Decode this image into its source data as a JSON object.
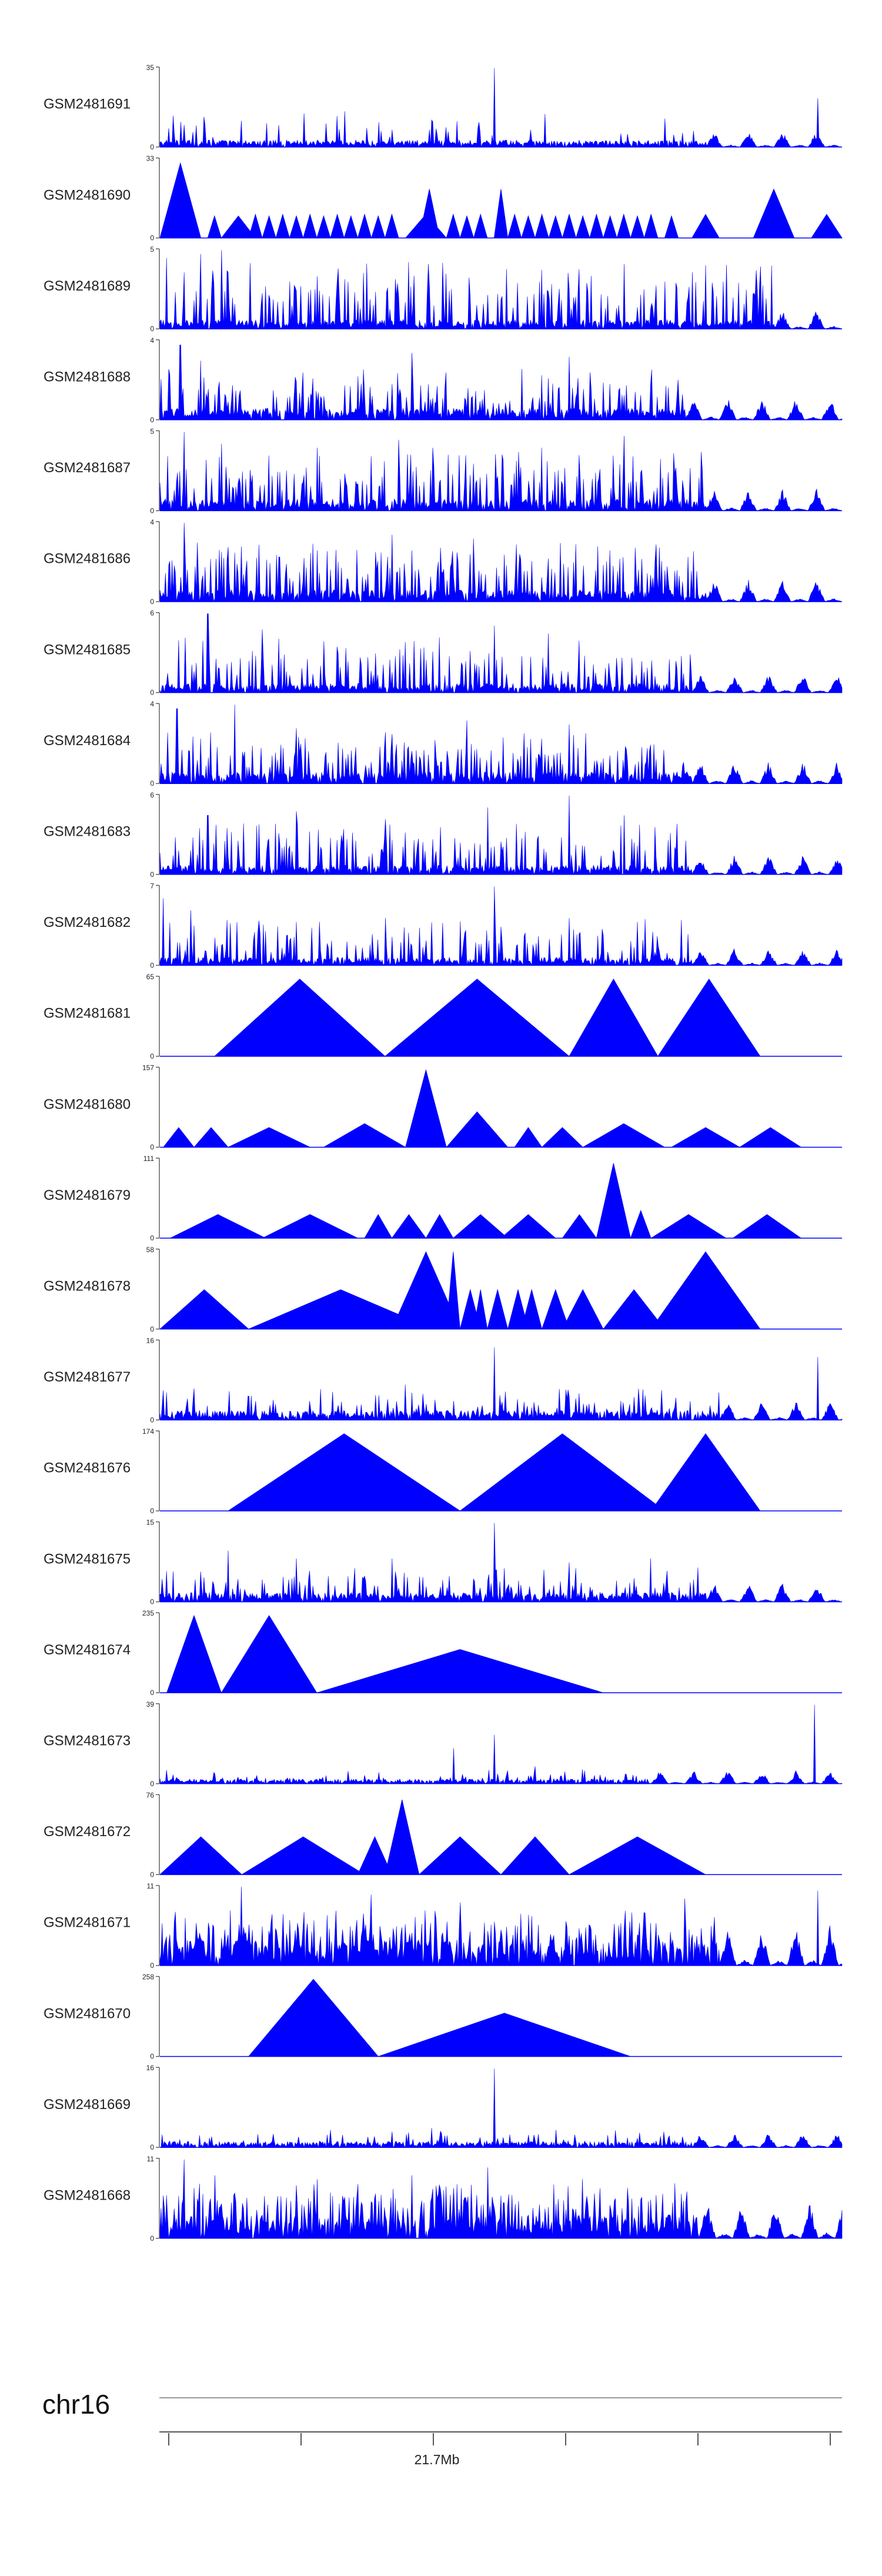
{
  "chart_data": {
    "type": "area",
    "chromosome": "chr16",
    "position_label": "21.7Mb",
    "color": "#0000ff",
    "tracks": [
      {
        "name": "GSM2481691",
        "ymax": "35",
        "ymax_value": 35,
        "style": "dense",
        "baseline": 0.06,
        "peak_rate": 0.1,
        "peaks": [
          [
            0.02,
            0.08
          ],
          [
            0.035,
            0.28
          ],
          [
            0.34,
            0.22
          ],
          [
            0.49,
            1.0
          ],
          [
            0.965,
            0.62
          ]
        ],
        "sparse_from": 0.8
      },
      {
        "name": "GSM2481690",
        "ymax": "33",
        "ymax_value": 33,
        "style": "triangles",
        "triangles": [
          [
            0.0,
            0.06,
            0.95
          ],
          [
            0.04,
            0.02,
            0.22
          ],
          [
            0.07,
            0.02,
            0.28
          ],
          [
            0.09,
            0.05,
            0.28
          ],
          [
            0.13,
            0.02,
            0.3
          ],
          [
            0.15,
            0.02,
            0.28
          ],
          [
            0.17,
            0.02,
            0.3
          ],
          [
            0.19,
            0.02,
            0.28
          ],
          [
            0.21,
            0.02,
            0.3
          ],
          [
            0.23,
            0.02,
            0.28
          ],
          [
            0.25,
            0.02,
            0.3
          ],
          [
            0.27,
            0.02,
            0.28
          ],
          [
            0.29,
            0.02,
            0.3
          ],
          [
            0.31,
            0.02,
            0.28
          ],
          [
            0.33,
            0.02,
            0.3
          ],
          [
            0.36,
            0.06,
            0.3
          ],
          [
            0.38,
            0.03,
            0.62
          ],
          [
            0.39,
            0.02,
            0.28
          ],
          [
            0.42,
            0.02,
            0.3
          ],
          [
            0.44,
            0.02,
            0.28
          ],
          [
            0.46,
            0.02,
            0.3
          ],
          [
            0.49,
            0.02,
            0.62
          ],
          [
            0.51,
            0.02,
            0.3
          ],
          [
            0.53,
            0.02,
            0.28
          ],
          [
            0.55,
            0.02,
            0.3
          ],
          [
            0.57,
            0.02,
            0.28
          ],
          [
            0.59,
            0.02,
            0.3
          ],
          [
            0.61,
            0.02,
            0.28
          ],
          [
            0.63,
            0.02,
            0.3
          ],
          [
            0.65,
            0.02,
            0.28
          ],
          [
            0.67,
            0.02,
            0.3
          ],
          [
            0.69,
            0.02,
            0.28
          ],
          [
            0.71,
            0.02,
            0.3
          ],
          [
            0.74,
            0.02,
            0.28
          ],
          [
            0.78,
            0.04,
            0.3
          ],
          [
            0.87,
            0.06,
            0.62
          ],
          [
            0.955,
            0.05,
            0.3
          ]
        ]
      },
      {
        "name": "GSM2481689",
        "ymax": "5",
        "ymax_value": 5,
        "style": "spikes",
        "baseline": 0.08,
        "peak_rate": 0.32,
        "peak_min": 0.25,
        "peak_max": 0.85,
        "peaks": [
          [
            0.01,
            0.9
          ],
          [
            0.06,
            0.95
          ],
          [
            0.09,
            1.0
          ],
          [
            0.19,
            0.6
          ],
          [
            0.42,
            0.7
          ],
          [
            0.56,
            0.75
          ],
          [
            0.78,
            0.72
          ]
        ],
        "sparse_from": 0.9
      },
      {
        "name": "GSM2481688",
        "ymax": "4",
        "ymax_value": 4,
        "style": "spikes",
        "baseline": 0.1,
        "peak_rate": 0.3,
        "peak_min": 0.2,
        "peak_max": 0.65,
        "peaks": [
          [
            0.03,
            0.95
          ],
          [
            0.06,
            0.75
          ],
          [
            0.21,
            0.6
          ],
          [
            0.29,
            0.55
          ],
          [
            0.37,
            0.85
          ],
          [
            0.42,
            0.6
          ],
          [
            0.6,
            0.8
          ]
        ],
        "sparse_from": 0.77
      },
      {
        "name": "GSM2481687",
        "ymax": "5",
        "ymax_value": 5,
        "style": "spikes",
        "baseline": 0.1,
        "peak_rate": 0.32,
        "peak_min": 0.25,
        "peak_max": 0.75,
        "peaks": [
          [
            0.035,
            1.0
          ],
          [
            0.09,
            0.85
          ],
          [
            0.16,
            0.7
          ],
          [
            0.23,
            0.8
          ],
          [
            0.35,
            0.9
          ],
          [
            0.4,
            0.8
          ],
          [
            0.56,
            0.8
          ],
          [
            0.68,
            0.95
          ]
        ],
        "sparse_from": 0.8
      },
      {
        "name": "GSM2481686",
        "ymax": "4",
        "ymax_value": 4,
        "style": "spikes",
        "baseline": 0.1,
        "peak_rate": 0.3,
        "peak_min": 0.25,
        "peak_max": 0.75,
        "peaks": [
          [
            0.035,
            1.0
          ],
          [
            0.12,
            0.7
          ],
          [
            0.23,
            0.65
          ],
          [
            0.34,
            0.85
          ],
          [
            0.46,
            0.8
          ],
          [
            0.66,
            0.65
          ]
        ],
        "sparse_from": 0.8
      },
      {
        "name": "GSM2481685",
        "ymax": "6",
        "ymax_value": 6,
        "style": "spikes",
        "baseline": 0.08,
        "peak_rate": 0.28,
        "peak_min": 0.2,
        "peak_max": 0.7,
        "peaks": [
          [
            0.07,
            1.0
          ],
          [
            0.15,
            0.8
          ],
          [
            0.24,
            0.65
          ],
          [
            0.41,
            0.7
          ],
          [
            0.49,
            0.85
          ],
          [
            0.57,
            0.75
          ]
        ],
        "sparse_from": 0.78
      },
      {
        "name": "GSM2481684",
        "ymax": "4",
        "ymax_value": 4,
        "style": "spikes",
        "baseline": 0.1,
        "peak_rate": 0.3,
        "peak_min": 0.2,
        "peak_max": 0.65,
        "peaks": [
          [
            0.025,
            0.95
          ],
          [
            0.11,
            1.0
          ],
          [
            0.2,
            0.7
          ],
          [
            0.33,
            0.65
          ],
          [
            0.45,
            0.8
          ],
          [
            0.6,
            0.75
          ]
        ],
        "sparse_from": 0.78
      },
      {
        "name": "GSM2481683",
        "ymax": "6",
        "ymax_value": 6,
        "style": "spikes",
        "baseline": 0.08,
        "peak_rate": 0.28,
        "peak_min": 0.2,
        "peak_max": 0.65,
        "peaks": [
          [
            0.07,
            0.75
          ],
          [
            0.2,
            0.8
          ],
          [
            0.33,
            0.7
          ],
          [
            0.48,
            0.85
          ],
          [
            0.6,
            1.0
          ],
          [
            0.68,
            0.75
          ]
        ],
        "sparse_from": 0.78
      },
      {
        "name": "GSM2481682",
        "ymax": "7",
        "ymax_value": 7,
        "style": "spikes",
        "baseline": 0.07,
        "peak_rate": 0.26,
        "peak_min": 0.15,
        "peak_max": 0.6,
        "peaks": [
          [
            0.005,
            0.85
          ],
          [
            0.045,
            0.7
          ],
          [
            0.2,
            0.55
          ],
          [
            0.33,
            0.6
          ],
          [
            0.49,
            1.0
          ],
          [
            0.6,
            0.6
          ],
          [
            0.7,
            0.55
          ]
        ],
        "sparse_from": 0.78
      },
      {
        "name": "GSM2481681",
        "ymax": "65",
        "ymax_value": 65,
        "style": "triangles",
        "triangles": [
          [
            0.08,
            0.25,
            0.98
          ],
          [
            0.33,
            0.27,
            0.98
          ],
          [
            0.6,
            0.13,
            0.98
          ],
          [
            0.73,
            0.15,
            0.98
          ]
        ]
      },
      {
        "name": "GSM2481680",
        "ymax": "157",
        "ymax_value": 157,
        "style": "triangles",
        "triangles": [
          [
            0.005,
            0.045,
            0.25
          ],
          [
            0.05,
            0.05,
            0.25
          ],
          [
            0.1,
            0.12,
            0.25
          ],
          [
            0.24,
            0.12,
            0.3
          ],
          [
            0.36,
            0.06,
            0.98
          ],
          [
            0.42,
            0.09,
            0.45
          ],
          [
            0.52,
            0.04,
            0.25
          ],
          [
            0.56,
            0.06,
            0.25
          ],
          [
            0.62,
            0.12,
            0.3
          ],
          [
            0.75,
            0.1,
            0.25
          ],
          [
            0.85,
            0.09,
            0.25
          ]
        ]
      },
      {
        "name": "GSM2481679",
        "ymax": "111",
        "ymax_value": 111,
        "style": "triangles",
        "triangles": [
          [
            0.015,
            0.14,
            0.3
          ],
          [
            0.15,
            0.14,
            0.3
          ],
          [
            0.3,
            0.04,
            0.3
          ],
          [
            0.34,
            0.05,
            0.3
          ],
          [
            0.39,
            0.04,
            0.3
          ],
          [
            0.43,
            0.08,
            0.3
          ],
          [
            0.5,
            0.08,
            0.3
          ],
          [
            0.59,
            0.05,
            0.3
          ],
          [
            0.64,
            0.05,
            0.95
          ],
          [
            0.69,
            0.03,
            0.35
          ],
          [
            0.72,
            0.11,
            0.3
          ],
          [
            0.84,
            0.1,
            0.3
          ]
        ]
      },
      {
        "name": "GSM2481678",
        "ymax": "58",
        "ymax_value": 58,
        "style": "triangles",
        "triangles": [
          [
            0.0,
            0.13,
            0.5
          ],
          [
            0.13,
            0.27,
            0.5
          ],
          [
            0.34,
            0.1,
            0.98
          ],
          [
            0.42,
            0.02,
            0.98
          ],
          [
            0.44,
            0.03,
            0.5
          ],
          [
            0.46,
            0.02,
            0.5
          ],
          [
            0.48,
            0.03,
            0.5
          ],
          [
            0.51,
            0.03,
            0.5
          ],
          [
            0.53,
            0.03,
            0.5
          ],
          [
            0.56,
            0.04,
            0.5
          ],
          [
            0.59,
            0.06,
            0.5
          ],
          [
            0.65,
            0.09,
            0.5
          ],
          [
            0.72,
            0.16,
            0.98
          ]
        ]
      },
      {
        "name": "GSM2481677",
        "ymax": "16",
        "ymax_value": 16,
        "style": "dense",
        "baseline": 0.08,
        "peak_rate": 0.18,
        "peak_min": 0.1,
        "peak_max": 0.4,
        "peaks": [
          [
            0.05,
            0.4
          ],
          [
            0.13,
            0.3
          ],
          [
            0.36,
            0.45
          ],
          [
            0.49,
            0.92
          ],
          [
            0.82,
            0.35
          ],
          [
            0.965,
            0.8
          ]
        ],
        "sparse_from": 0.82
      },
      {
        "name": "GSM2481676",
        "ymax": "174",
        "ymax_value": 174,
        "style": "triangles",
        "triangles": [
          [
            0.1,
            0.34,
            0.98
          ],
          [
            0.44,
            0.3,
            0.98
          ],
          [
            0.72,
            0.16,
            0.98
          ]
        ]
      },
      {
        "name": "GSM2481675",
        "ymax": "15",
        "ymax_value": 15,
        "style": "spikes",
        "baseline": 0.08,
        "peak_rate": 0.22,
        "peak_min": 0.15,
        "peak_max": 0.45,
        "peaks": [
          [
            0.1,
            0.65
          ],
          [
            0.2,
            0.55
          ],
          [
            0.34,
            0.55
          ],
          [
            0.49,
            1.0
          ],
          [
            0.6,
            0.5
          ],
          [
            0.72,
            0.55
          ]
        ],
        "sparse_from": 0.8
      },
      {
        "name": "GSM2481674",
        "ymax": "235",
        "ymax_value": 235,
        "style": "triangles",
        "triangles": [
          [
            0.01,
            0.08,
            0.98
          ],
          [
            0.09,
            0.14,
            0.98
          ],
          [
            0.23,
            0.42,
            0.55
          ]
        ]
      },
      {
        "name": "GSM2481673",
        "ymax": "39",
        "ymax_value": 39,
        "style": "dense",
        "baseline": 0.04,
        "peak_rate": 0.12,
        "peak_min": 0.05,
        "peak_max": 0.18,
        "peaks": [
          [
            0.43,
            0.45
          ],
          [
            0.49,
            0.62
          ],
          [
            0.55,
            0.22
          ],
          [
            0.62,
            0.18
          ],
          [
            0.96,
            1.0
          ]
        ],
        "sparse_from": 0.72
      },
      {
        "name": "GSM2481672",
        "ymax": "76",
        "ymax_value": 76,
        "style": "triangles",
        "triangles": [
          [
            0.0,
            0.12,
            0.48
          ],
          [
            0.12,
            0.18,
            0.48
          ],
          [
            0.29,
            0.05,
            0.48
          ],
          [
            0.33,
            0.05,
            0.95
          ],
          [
            0.38,
            0.12,
            0.48
          ],
          [
            0.5,
            0.1,
            0.48
          ],
          [
            0.6,
            0.2,
            0.48
          ]
        ]
      },
      {
        "name": "GSM2481671",
        "ymax": "11",
        "ymax_value": 11,
        "style": "spikes",
        "baseline": 0.22,
        "peak_rate": 0.28,
        "peak_min": 0.35,
        "peak_max": 0.7,
        "peaks": [
          [
            0.12,
            1.0
          ],
          [
            0.31,
            0.9
          ],
          [
            0.44,
            0.8
          ],
          [
            0.77,
            0.85
          ],
          [
            0.965,
            0.95
          ]
        ],
        "sparse_from": 0.82
      },
      {
        "name": "GSM2481670",
        "ymax": "258",
        "ymax_value": 258,
        "style": "triangles",
        "triangles": [
          [
            0.13,
            0.19,
            0.98
          ],
          [
            0.32,
            0.37,
            0.55
          ]
        ]
      },
      {
        "name": "GSM2481669",
        "ymax": "16",
        "ymax_value": 16,
        "style": "dense",
        "baseline": 0.05,
        "peak_rate": 0.15,
        "peak_min": 0.05,
        "peak_max": 0.25,
        "peaks": [
          [
            0.25,
            0.22
          ],
          [
            0.34,
            0.2
          ],
          [
            0.49,
            1.0
          ],
          [
            0.58,
            0.22
          ]
        ],
        "sparse_from": 0.78
      },
      {
        "name": "GSM2481668",
        "ymax": "11",
        "ymax_value": 11,
        "style": "spikes",
        "baseline": 0.2,
        "peak_rate": 0.3,
        "peak_min": 0.35,
        "peak_max": 0.7,
        "peaks": [
          [
            0.035,
            1.0
          ],
          [
            0.08,
            0.8
          ],
          [
            0.23,
            0.75
          ],
          [
            0.37,
            0.8
          ],
          [
            0.48,
            0.9
          ],
          [
            0.62,
            0.75
          ]
        ],
        "sparse_from": 0.79
      }
    ]
  }
}
